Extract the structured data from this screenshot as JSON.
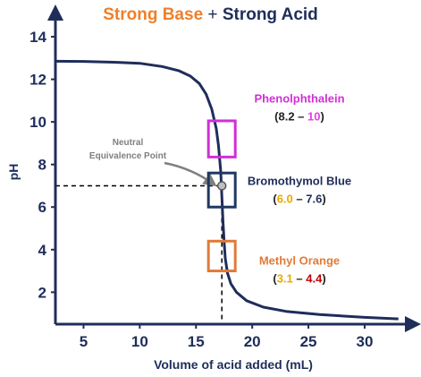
{
  "title": {
    "part1": "Strong Base",
    "plus": "+",
    "part2": "Strong Acid"
  },
  "colors": {
    "axis": "#1f2d5a",
    "curve": "#1f2d5a",
    "base": "#f07f2a"
  },
  "chart_data": {
    "type": "line",
    "title": "Strong Base + Strong Acid",
    "xlabel": "Volume of acid added (mL)",
    "ylabel": "pH",
    "xlim": [
      2.5,
      33.5
    ],
    "ylim": [
      0.5,
      14.8
    ],
    "xticks": [
      5,
      10,
      15,
      20,
      25,
      30
    ],
    "yticks": [
      2,
      4,
      6,
      8,
      10,
      12,
      14
    ],
    "grid": false,
    "series": [
      {
        "x": [
          2.5,
          5,
          8,
          10,
          12,
          13.5,
          14.5,
          15.3,
          15.9,
          16.4,
          16.8,
          17.0,
          17.2,
          17.3,
          17.4,
          17.5,
          17.6,
          17.8,
          18.1,
          18.6,
          19.5,
          21,
          23,
          26,
          30,
          33
        ],
        "y": [
          12.85,
          12.84,
          12.8,
          12.75,
          12.6,
          12.4,
          12.15,
          11.8,
          11.3,
          10.6,
          9.7,
          8.9,
          7.7,
          6.5,
          5.3,
          4.4,
          3.6,
          2.9,
          2.4,
          2.0,
          1.6,
          1.3,
          1.1,
          0.95,
          0.82,
          0.75
        ]
      }
    ],
    "equivalence": {
      "x": 17.3,
      "y": 7.0,
      "label": "Neutral Equivalence Point"
    },
    "indicators": [
      {
        "name": "Phenolphthalein",
        "low": "8.2",
        "high": "10",
        "low_color": "#222222",
        "high_color": "#e040e0",
        "box_color": "#d12fd6",
        "box_ylim": [
          8.35,
          10.05
        ],
        "name_color": "#d12fd6"
      },
      {
        "name": "Bromothymol Blue",
        "low": "6.0",
        "high": "7.6",
        "low_color": "#e8a900",
        "high_color": "#1f2d5a",
        "box_color": "#1f3864",
        "box_ylim": [
          6.0,
          7.6
        ],
        "name_color": "#1f2d5a"
      },
      {
        "name": "Methyl Orange",
        "low": "3.1",
        "high": "4.4",
        "low_color": "#e8a900",
        "high_color": "#c00000",
        "box_color": "#e07b39",
        "box_ylim": [
          3.0,
          4.4
        ],
        "name_color": "#e07b39"
      }
    ],
    "range_separator": "–"
  }
}
